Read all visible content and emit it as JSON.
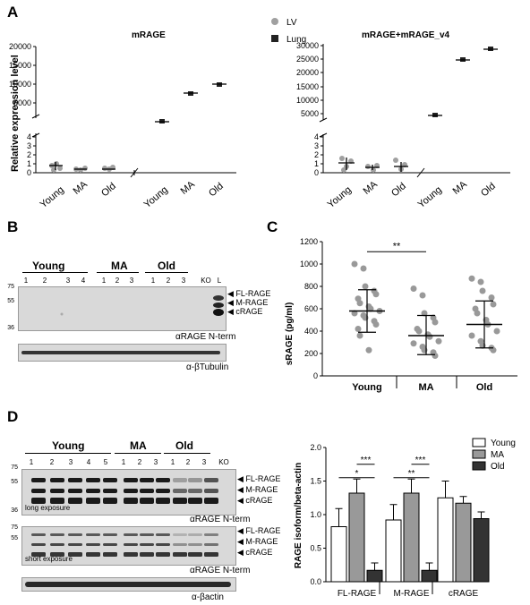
{
  "panels": {
    "A": "A",
    "B": "B",
    "C": "C",
    "D": "D"
  },
  "panel_a": {
    "left_title": "mRAGE",
    "right_title": "mRAGE+mRAGE_v4",
    "ylabel": "Relative expression level",
    "legend": [
      {
        "label": "LV",
        "color": "#a0a0a0",
        "shape": "circle"
      },
      {
        "label": "Lung",
        "color": "#222222",
        "shape": "square"
      }
    ],
    "left_upper_ticks": [
      "20000",
      "15000",
      "10000",
      "5000"
    ],
    "left_lower_ticks": [
      "4",
      "3",
      "2",
      "1",
      "0"
    ],
    "right_upper_ticks": [
      "30000",
      "25000",
      "20000",
      "15000",
      "10000",
      "5000"
    ],
    "right_lower_ticks": [
      "4",
      "3",
      "2",
      "1",
      "0"
    ],
    "xticks": [
      "Young",
      "MA",
      "Old",
      "Young",
      "MA",
      "Old"
    ]
  },
  "chart_data": [
    {
      "type": "scatter",
      "title": "mRAGE",
      "ylabel": "Relative expression level",
      "categories": [
        "Young",
        "MA",
        "Old",
        "Young",
        "MA",
        "Old"
      ],
      "series": [
        {
          "name": "LV",
          "means": [
            0.8,
            0.35,
            0.35,
            null,
            null,
            null
          ]
        },
        {
          "name": "Lung",
          "means": [
            null,
            null,
            null,
            3000,
            13000,
            16200
          ]
        }
      ]
    },
    {
      "type": "scatter",
      "title": "mRAGE+mRAGE_v4",
      "categories": [
        "Young",
        "MA",
        "Old",
        "Young",
        "MA",
        "Old"
      ],
      "series": [
        {
          "name": "LV",
          "means": [
            1.1,
            0.55,
            0.7,
            null,
            null,
            null
          ]
        },
        {
          "name": "Lung",
          "means": [
            null,
            null,
            null,
            4600,
            24500,
            28200
          ]
        }
      ]
    },
    {
      "type": "scatter",
      "panel": "C",
      "ylabel": "sRAGE (pg/ml)",
      "categories": [
        "Young",
        "MA",
        "Old"
      ],
      "ylim": [
        0,
        1200
      ],
      "yticks": [
        "0",
        "200",
        "400",
        "600",
        "800",
        "1000",
        "1200"
      ],
      "means": [
        580,
        360,
        460
      ],
      "sd_low": [
        390,
        190,
        250
      ],
      "sd_high": [
        770,
        540,
        670
      ],
      "significance": [
        {
          "pair": [
            "Young",
            "MA"
          ],
          "label": "**"
        }
      ],
      "points": [
        [
          1000,
          960,
          800,
          760,
          730,
          690,
          650,
          620,
          600,
          580,
          560,
          540,
          520,
          490,
          460,
          420,
          360,
          230
        ],
        [
          780,
          720,
          560,
          520,
          480,
          420,
          400,
          370,
          350,
          310,
          290,
          260,
          230,
          210,
          180
        ],
        [
          870,
          840,
          760,
          700,
          640,
          600,
          560,
          500,
          460,
          400,
          360,
          310,
          270,
          250,
          230
        ]
      ]
    },
    {
      "type": "bar",
      "panel": "D",
      "ylabel": "RAGE isoform/beta-actin",
      "categories": [
        "FL-RAGE",
        "M-RAGE",
        "cRAGE"
      ],
      "ylim": [
        0,
        2.0
      ],
      "yticks": [
        "0.0",
        "0.5",
        "1.0",
        "1.5",
        "2.0"
      ],
      "legend": [
        "Young",
        "MA",
        "Old"
      ],
      "colors": [
        "#ffffff",
        "#999999",
        "#333333"
      ],
      "series": [
        {
          "name": "Young",
          "values": [
            0.82,
            0.92,
            1.25
          ],
          "err": [
            0.27,
            0.23,
            0.25
          ]
        },
        {
          "name": "MA",
          "values": [
            1.32,
            1.32,
            1.17
          ],
          "err": [
            0.21,
            0.21,
            0.1
          ]
        },
        {
          "name": "Old",
          "values": [
            0.17,
            0.17,
            0.94
          ],
          "err": [
            0.11,
            0.11,
            0.1
          ]
        }
      ],
      "significance": [
        {
          "group": "FL-RAGE",
          "pair": [
            "MA",
            "Old"
          ],
          "label": "***"
        },
        {
          "group": "FL-RAGE",
          "pair": [
            "Young",
            "Old"
          ],
          "label": "*"
        },
        {
          "group": "M-RAGE",
          "pair": [
            "MA",
            "Old"
          ],
          "label": "***"
        },
        {
          "group": "M-RAGE",
          "pair": [
            "Young",
            "Old"
          ],
          "label": "**"
        }
      ]
    }
  ],
  "panel_b": {
    "groups": [
      "Young",
      "MA",
      "Old"
    ],
    "lanes": [
      "1",
      "2",
      "3",
      "4",
      "1",
      "2",
      "3",
      "1",
      "2",
      "3",
      "KO",
      "L"
    ],
    "mw": [
      "75",
      "55",
      "36"
    ],
    "bands": [
      "FL-RAGE",
      "M-RAGE",
      "cRAGE"
    ],
    "antibody1": "αRAGE N-term",
    "antibody2": "α-βTubulin"
  },
  "panel_d": {
    "groups": [
      "Young",
      "MA",
      "Old"
    ],
    "lanes": [
      "1",
      "2",
      "3",
      "4",
      "5",
      "1",
      "2",
      "3",
      "1",
      "2",
      "3",
      "KO"
    ],
    "mw1": [
      "75",
      "55",
      "36"
    ],
    "mw2": [
      "75",
      "55"
    ],
    "bands": [
      "FL-RAGE",
      "M-RAGE",
      "cRAGE"
    ],
    "long_exposure": "long exposure",
    "short_exposure": "short exposure",
    "antibody1": "αRAGE N-term",
    "antibody2": "αRAGE N-term",
    "antibody3": "α-βactin"
  }
}
